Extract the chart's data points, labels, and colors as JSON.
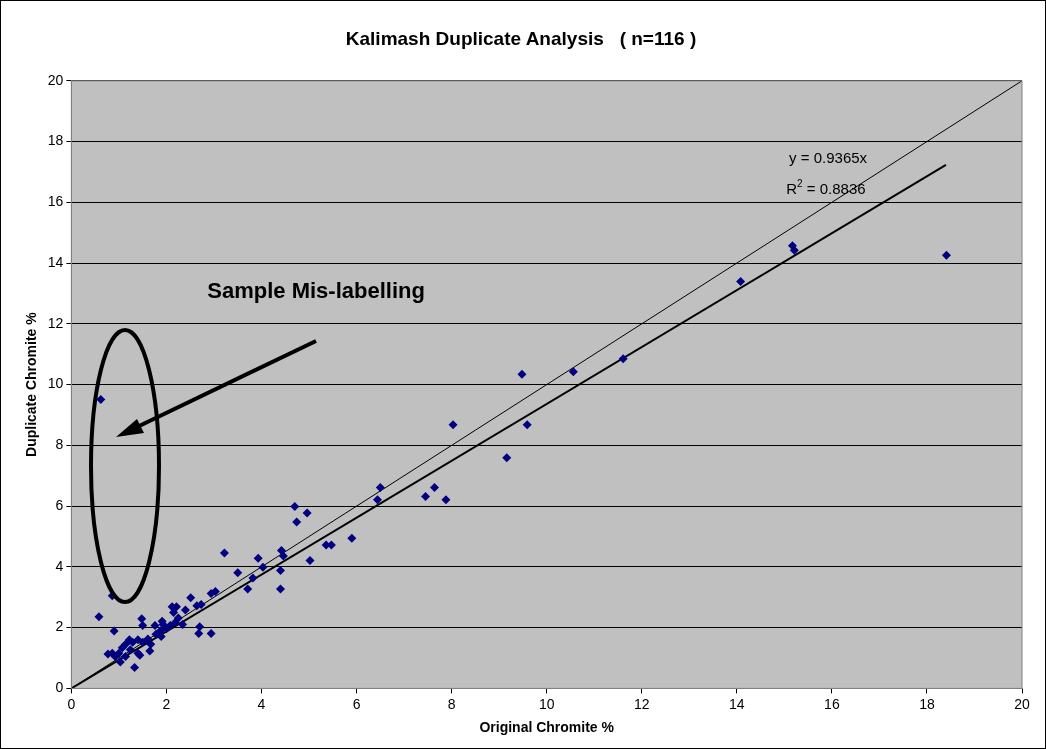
{
  "chart_data": {
    "type": "scatter",
    "title": "Kalimash Duplicate Analysis   ( n=116 )",
    "xlabel": "Original Chromite %",
    "ylabel": "Duplicate Chromite %",
    "xlim": [
      0,
      20
    ],
    "ylim": [
      0,
      20
    ],
    "xticks": [
      0,
      2,
      4,
      6,
      8,
      10,
      12,
      14,
      16,
      18,
      20
    ],
    "yticks": [
      0,
      2,
      4,
      6,
      8,
      10,
      12,
      14,
      16,
      18,
      20
    ],
    "grid": "y",
    "legend": false,
    "marker": "diamond",
    "series": [
      {
        "color": "#000080",
        "x": [
          0.58,
          0.62,
          0.86,
          0.9,
          0.77,
          1.33,
          1.48,
          1.5,
          1.44,
          1.65,
          1.76,
          1.89,
          1.93,
          2.12,
          2.21,
          2.15,
          2.34,
          2.4,
          2.51,
          2.64,
          2.7,
          2.68,
          2.94,
          2.94,
          3.03,
          2.73,
          1.91,
          1.0,
          0.92,
          1.03,
          1.07,
          1.14,
          1.22,
          1.29,
          1.24,
          1.4,
          1.5,
          1.61,
          1.67,
          1.78,
          1.87,
          2.0,
          2.08,
          2.19,
          2.25,
          1.14,
          0.86,
          1.4,
          3.22,
          3.5,
          3.71,
          3.82,
          3.93,
          4.03,
          4.42,
          4.46,
          4.4,
          4.4,
          4.7,
          4.74,
          4.96,
          5.02,
          5.36,
          5.47,
          5.9,
          6.44,
          6.5,
          7.45,
          7.64,
          7.88,
          8.03,
          9.16,
          9.59,
          9.48,
          10.56,
          11.61,
          14.08,
          15.17,
          15.21,
          18.41
        ],
        "values": [
          2.36,
          9.51,
          3.05,
          1.89,
          1.13,
          0.69,
          2.29,
          2.07,
          1.09,
          1.23,
          2.07,
          1.71,
          2.1,
          2.69,
          2.69,
          2.5,
          2.1,
          2.58,
          2.98,
          2.72,
          2.03,
          1.81,
          1.81,
          3.12,
          3.19,
          2.76,
          2.21,
          1.16,
          1.05,
          0.87,
          1.34,
          1.45,
          1.6,
          1.52,
          1.27,
          1.6,
          1.52,
          1.63,
          1.45,
          1.78,
          1.89,
          1.96,
          2.07,
          2.18,
          2.32,
          1.05,
          1.16,
          1.16,
          4.46,
          3.81,
          3.27,
          3.63,
          4.28,
          3.99,
          4.54,
          4.36,
          3.88,
          3.27,
          5.99,
          5.48,
          5.77,
          4.21,
          4.72,
          4.72,
          4.94,
          6.21,
          6.61,
          6.32,
          6.61,
          6.21,
          8.68,
          7.59,
          8.68,
          10.34,
          10.42,
          10.85,
          13.39,
          14.57,
          14.42,
          14.26
        ]
      },
      {
        "type": "line",
        "color": "#000000",
        "marker": "none",
        "x": [
          0,
          20
        ],
        "values": [
          0,
          20
        ]
      },
      {
        "type": "line",
        "color": "#000000",
        "marker": "none",
        "x": [
          0,
          18.4
        ],
        "values": [
          0,
          17.23
        ]
      }
    ],
    "annotations": [
      "y = 0.9365x",
      "R$^{2}$ = 0.8836",
      "Sample Mis-labelling"
    ]
  }
}
